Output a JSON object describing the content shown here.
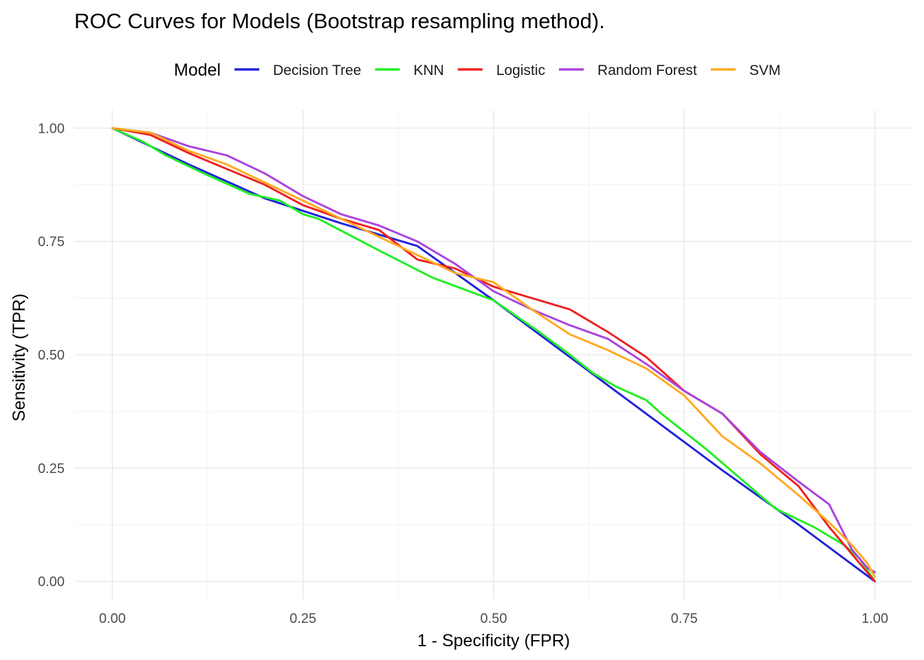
{
  "chart_data": {
    "type": "line",
    "title": "ROC Curves for Models (Bootstrap resampling method).",
    "xlabel": "1 - Specificity (FPR)",
    "ylabel": "Sensitivity (TPR)",
    "xlim": [
      -0.05,
      1.05
    ],
    "ylim": [
      -0.04,
      1.04
    ],
    "x_ticks": [
      0.0,
      0.25,
      0.5,
      0.75,
      1.0
    ],
    "y_ticks": [
      0.0,
      0.25,
      0.5,
      0.75,
      1.0
    ],
    "x_tick_labels": [
      "0.00",
      "0.25",
      "0.50",
      "0.75",
      "1.00"
    ],
    "y_tick_labels": [
      "0.00",
      "0.25",
      "0.50",
      "0.75",
      "1.00"
    ],
    "grid": true,
    "legend": {
      "title": "Model",
      "position": "top"
    },
    "series": [
      {
        "name": "Decision Tree",
        "color": "#2222dd",
        "x": [
          0.0,
          0.1,
          0.2,
          0.3,
          0.4,
          0.5,
          0.6,
          0.7,
          0.8,
          0.9,
          1.0
        ],
        "y": [
          1.0,
          0.92,
          0.845,
          0.79,
          0.74,
          0.62,
          0.495,
          0.37,
          0.245,
          0.125,
          0.0
        ]
      },
      {
        "name": "KNN",
        "color": "#22ee22",
        "x": [
          0.0,
          0.04,
          0.07,
          0.12,
          0.18,
          0.22,
          0.25,
          0.27,
          0.35,
          0.42,
          0.5,
          0.56,
          0.6,
          0.63,
          0.66,
          0.7,
          0.72,
          0.78,
          0.87,
          0.92,
          0.96,
          0.98,
          1.0
        ],
        "y": [
          1.0,
          0.97,
          0.94,
          0.9,
          0.855,
          0.84,
          0.81,
          0.8,
          0.73,
          0.67,
          0.62,
          0.55,
          0.5,
          0.46,
          0.43,
          0.4,
          0.37,
          0.29,
          0.16,
          0.12,
          0.08,
          0.05,
          0.0
        ]
      },
      {
        "name": "Logistic",
        "color": "#ee2222",
        "x": [
          0.0,
          0.05,
          0.1,
          0.15,
          0.2,
          0.25,
          0.3,
          0.35,
          0.4,
          0.45,
          0.5,
          0.55,
          0.6,
          0.65,
          0.7,
          0.75,
          0.8,
          0.85,
          0.9,
          0.94,
          0.96,
          0.98,
          1.0
        ],
        "y": [
          1.0,
          0.985,
          0.945,
          0.91,
          0.875,
          0.83,
          0.8,
          0.775,
          0.71,
          0.69,
          0.65,
          0.625,
          0.6,
          0.55,
          0.495,
          0.42,
          0.37,
          0.28,
          0.21,
          0.12,
          0.08,
          0.04,
          0.0
        ]
      },
      {
        "name": "Random Forest",
        "color": "#aa44dd",
        "x": [
          0.0,
          0.05,
          0.1,
          0.15,
          0.2,
          0.25,
          0.3,
          0.35,
          0.4,
          0.45,
          0.5,
          0.55,
          0.6,
          0.65,
          0.7,
          0.75,
          0.8,
          0.85,
          0.9,
          0.94,
          0.97,
          0.99,
          1.0
        ],
        "y": [
          1.0,
          0.99,
          0.96,
          0.94,
          0.9,
          0.85,
          0.81,
          0.785,
          0.75,
          0.7,
          0.64,
          0.6,
          0.565,
          0.535,
          0.48,
          0.42,
          0.37,
          0.285,
          0.22,
          0.17,
          0.07,
          0.03,
          0.02
        ]
      },
      {
        "name": "SVM",
        "color": "#ffaa22",
        "x": [
          0.0,
          0.05,
          0.1,
          0.15,
          0.2,
          0.25,
          0.3,
          0.35,
          0.4,
          0.45,
          0.5,
          0.55,
          0.6,
          0.65,
          0.7,
          0.75,
          0.8,
          0.85,
          0.9,
          0.94,
          0.97,
          0.99,
          1.0
        ],
        "y": [
          1.0,
          0.99,
          0.95,
          0.92,
          0.88,
          0.84,
          0.8,
          0.76,
          0.72,
          0.68,
          0.66,
          0.6,
          0.545,
          0.51,
          0.47,
          0.41,
          0.32,
          0.26,
          0.19,
          0.13,
          0.08,
          0.04,
          0.01
        ]
      }
    ]
  }
}
